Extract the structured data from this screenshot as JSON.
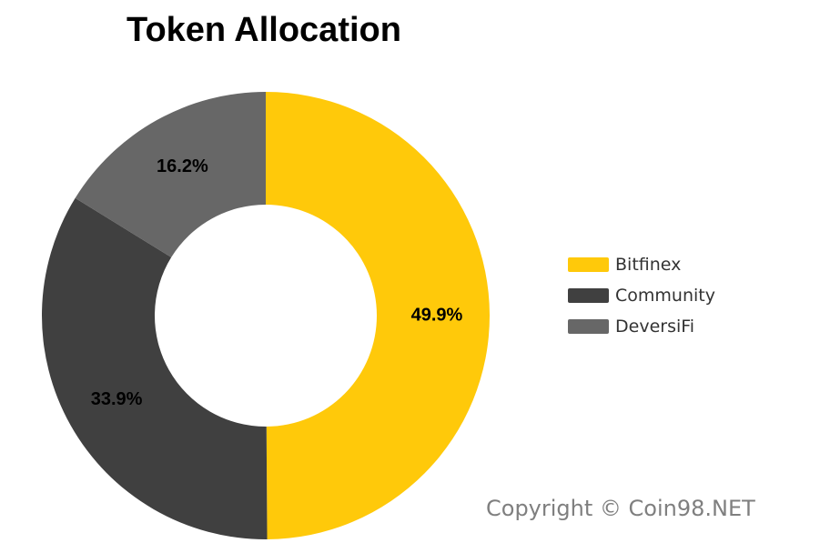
{
  "chart_data": {
    "type": "pie",
    "title": "Token Allocation",
    "donut": true,
    "start_angle_deg": 0,
    "direction": "clockwise",
    "slices": [
      {
        "label": "Bitfinex",
        "value": 49.9,
        "display": "49.9%",
        "color": "#FFC90A"
      },
      {
        "label": "Community",
        "value": 33.9,
        "display": "33.9%",
        "color": "#404040"
      },
      {
        "label": "DeversiFi",
        "value": 16.2,
        "display": "16.2%",
        "color": "#676767"
      }
    ],
    "legend_position": "right"
  },
  "footer": {
    "copyright": "Copyright © Coin98.NET"
  }
}
